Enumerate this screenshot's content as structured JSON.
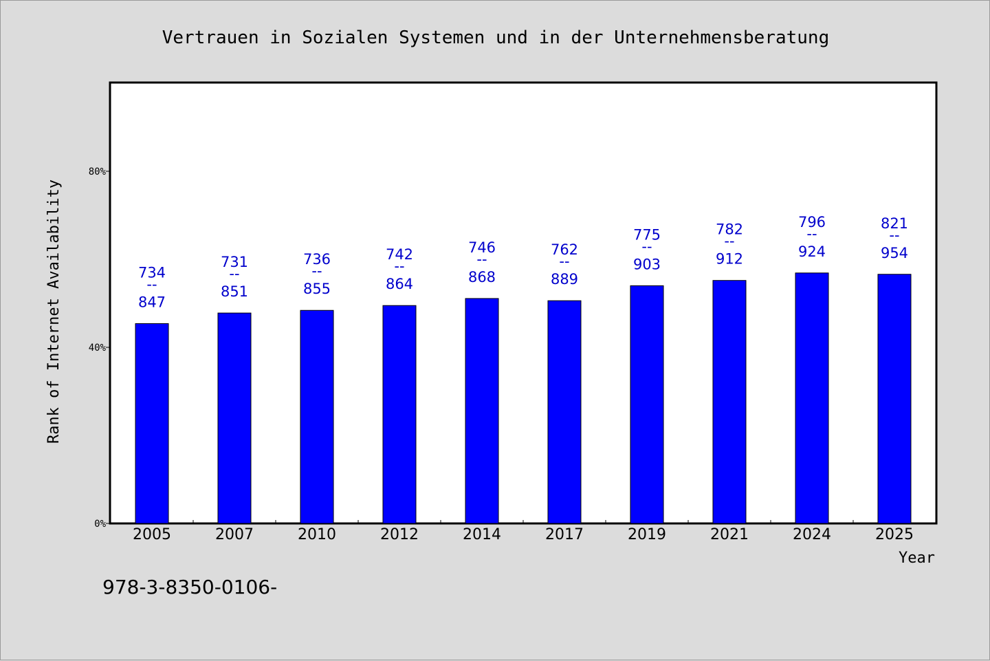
{
  "chart_data": {
    "type": "bar",
    "title": "Vertrauen in Sozialen Systemen und in der Unternehmensberatung",
    "xlabel": "Year",
    "ylabel": "Rank of Internet Availability",
    "categories": [
      "2005",
      "2007",
      "2010",
      "2012",
      "2014",
      "2017",
      "2019",
      "2021",
      "2024",
      "2025"
    ],
    "values": [
      45.4,
      47.8,
      48.4,
      49.5,
      51.1,
      50.6,
      54.0,
      55.2,
      56.9,
      56.6
    ],
    "data_labels": [
      {
        "top": "734",
        "sep": "--",
        "bottom": "847"
      },
      {
        "top": "731",
        "sep": "--",
        "bottom": "851"
      },
      {
        "top": "736",
        "sep": "--",
        "bottom": "855"
      },
      {
        "top": "742",
        "sep": "--",
        "bottom": "864"
      },
      {
        "top": "746",
        "sep": "--",
        "bottom": "868"
      },
      {
        "top": "762",
        "sep": "--",
        "bottom": "889"
      },
      {
        "top": "775",
        "sep": "--",
        "bottom": "903"
      },
      {
        "top": "782",
        "sep": "--",
        "bottom": "912"
      },
      {
        "top": "796",
        "sep": "--",
        "bottom": "924"
      },
      {
        "top": "821",
        "sep": "--",
        "bottom": "954"
      }
    ],
    "ylim": [
      0,
      100
    ],
    "yticks": [
      0,
      40,
      80
    ],
    "ytick_labels": [
      "0%",
      "40%",
      "80%"
    ],
    "grid": false,
    "legend": "none",
    "bar_color": "#0000ff",
    "label_color": "#0000cc",
    "plot_background": "#ffffff",
    "page_background": "#dcdcdc"
  },
  "footer_text": "978-3-8350-0106-"
}
